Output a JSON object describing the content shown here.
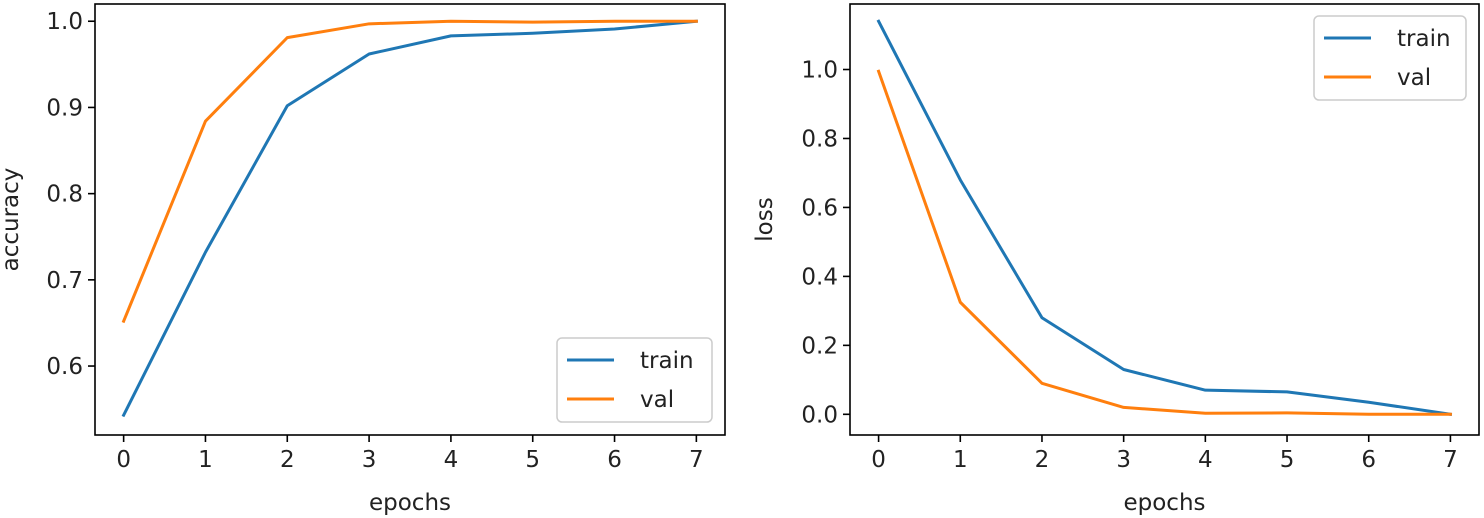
{
  "chart_data": [
    {
      "type": "line",
      "title": "",
      "xlabel": "epochs",
      "ylabel": "accuracy",
      "x": [
        0,
        1,
        2,
        3,
        4,
        5,
        6,
        7
      ],
      "xlim": [
        -0.35,
        7.35
      ],
      "ylim": [
        0.52,
        1.02
      ],
      "xticks": [
        "0",
        "1",
        "2",
        "3",
        "4",
        "5",
        "6",
        "7"
      ],
      "yticks": [
        "0.6",
        "0.7",
        "0.8",
        "0.9",
        "1.0"
      ],
      "ytick_values": [
        0.6,
        0.7,
        0.8,
        0.9,
        1.0
      ],
      "grid": false,
      "legend_position": "bottom-right",
      "series": [
        {
          "name": "train",
          "color": "#1f77b4",
          "values": [
            0.543,
            0.732,
            0.902,
            0.962,
            0.983,
            0.986,
            0.991,
            1.0
          ]
        },
        {
          "name": "val",
          "color": "#ff7f0e",
          "values": [
            0.652,
            0.884,
            0.981,
            0.997,
            1.0,
            0.999,
            1.0,
            1.0
          ]
        }
      ]
    },
    {
      "type": "line",
      "title": "",
      "xlabel": "epochs",
      "ylabel": "loss",
      "x": [
        0,
        1,
        2,
        3,
        4,
        5,
        6,
        7
      ],
      "xlim": [
        -0.35,
        7.35
      ],
      "ylim": [
        -0.06,
        1.19
      ],
      "xticks": [
        "0",
        "1",
        "2",
        "3",
        "4",
        "5",
        "6",
        "7"
      ],
      "yticks": [
        "0.0",
        "0.2",
        "0.4",
        "0.6",
        "0.8",
        "1.0"
      ],
      "ytick_values": [
        0.0,
        0.2,
        0.4,
        0.6,
        0.8,
        1.0
      ],
      "grid": false,
      "legend_position": "top-right",
      "series": [
        {
          "name": "train",
          "color": "#1f77b4",
          "values": [
            1.14,
            0.68,
            0.28,
            0.13,
            0.07,
            0.065,
            0.035,
            0.0
          ]
        },
        {
          "name": "val",
          "color": "#ff7f0e",
          "values": [
            0.995,
            0.325,
            0.09,
            0.02,
            0.003,
            0.004,
            0.0,
            0.0
          ]
        }
      ]
    }
  ]
}
